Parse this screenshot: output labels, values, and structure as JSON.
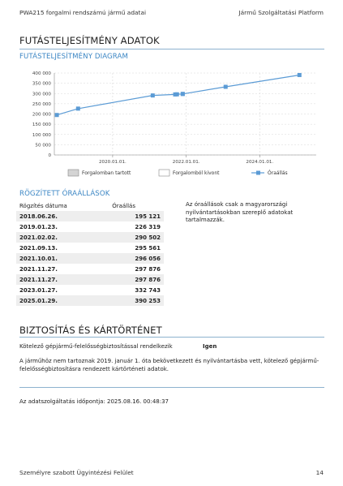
{
  "header": {
    "left": "PWA215 forgalmi rendszámú jármű adatai",
    "right": "Jármű Szolgáltatási Platform"
  },
  "section_mileage": {
    "title": "FUTÁSTELJESÍTMÉNY ADATOK",
    "diagram_title": "FUTÁSTELJESÍTMÉNY DIAGRAM"
  },
  "chart_data": {
    "type": "line",
    "y_ticks": [
      "0",
      "50 000",
      "100 000",
      "150 000",
      "200 000",
      "250 000",
      "300 000",
      "350 000",
      "400 000"
    ],
    "ylim": [
      0,
      400000
    ],
    "x_ticks": [
      "2020.01.01.",
      "2022.01.01.",
      "2024.01.01."
    ],
    "grid": true,
    "legend": [
      {
        "label": "Forgalomban tartott",
        "kind": "filled-box",
        "color": "#d4d4d4"
      },
      {
        "label": "Forgalomból kivont",
        "kind": "empty-box",
        "color": "#ffffff"
      },
      {
        "label": "Óraállás",
        "kind": "line-marker",
        "color": "#5b9bd5"
      }
    ],
    "legend_position": "bottom",
    "series": [
      {
        "name": "Óraállás",
        "color": "#5b9bd5",
        "x": [
          "2018.06.26.",
          "2019.01.23.",
          "2021.02.02.",
          "2021.09.13.",
          "2021.10.01.",
          "2021.11.27.",
          "2021.11.27.",
          "2023.01.27.",
          "2025.01.29."
        ],
        "values": [
          195121,
          226319,
          290502,
          295561,
          296056,
          297876,
          297876,
          332743,
          390253
        ]
      }
    ]
  },
  "readings": {
    "title": "RÖGZÍTETT ÓRAÁLLÁSOK",
    "col_date": "Rögzítés dátuma",
    "col_value": "Óraállás",
    "rows": [
      {
        "date": "2018.06.26.",
        "value": "195 121"
      },
      {
        "date": "2019.01.23.",
        "value": "226 319"
      },
      {
        "date": "2021.02.02.",
        "value": "290 502"
      },
      {
        "date": "2021.09.13.",
        "value": "295 561"
      },
      {
        "date": "2021.10.01.",
        "value": "296 056"
      },
      {
        "date": "2021.11.27.",
        "value": "297 876"
      },
      {
        "date": "2021.11.27.",
        "value": "297 876"
      },
      {
        "date": "2023.01.27.",
        "value": "332 743"
      },
      {
        "date": "2025.01.29.",
        "value": "390 253"
      }
    ],
    "note": "Az óraállások csak a magyarországi nyilvántartásokban szereplő adatokat tartalmazzák."
  },
  "insurance": {
    "title": "BIZTOSÍTÁS ÉS KÁRTÖRTÉNET",
    "question": "Kötelező gépjármű-felelősségbiztosítással rendelkezik",
    "answer": "Igen",
    "note": "A járműhöz nem tartoznak 2019. január 1. óta bekövetkezett és nyilvántartásba vett, kötelező gépjármű-felelősségbiztosításra rendezett kártörténeti adatok."
  },
  "service_time": "Az adatszolgáltatás időpontja: 2025.08.16. 00:48:37",
  "footer": {
    "left": "Személyre szabott Ügyintézési Felület",
    "page": "14"
  }
}
